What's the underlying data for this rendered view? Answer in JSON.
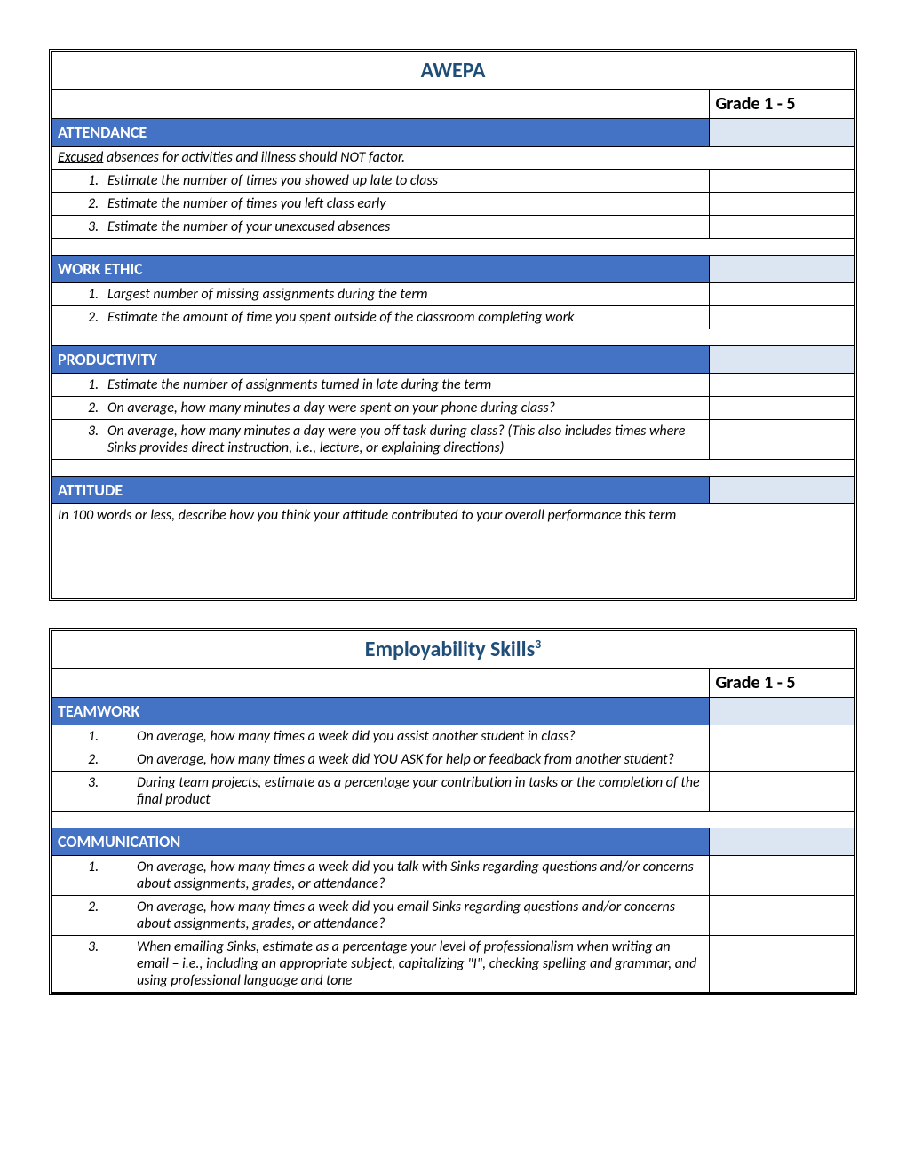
{
  "colors": {
    "heading_text": "#1f4e79",
    "section_bg": "#4472c4",
    "section_fg": "#ffffff",
    "section_right_bg": "#dce6f2",
    "border": "#000000",
    "page_bg": "#ffffff"
  },
  "layout": {
    "col_main_pct": 82,
    "col_grade_pct": 18,
    "font_family": "Calibri",
    "title_fontsize": 24,
    "section_fontsize": 18,
    "body_fontsize": 16
  },
  "tables": [
    {
      "title": "AWEPA",
      "grade_label": "Grade 1 - 5",
      "sections": [
        {
          "heading": "ATTENDANCE",
          "note": "Excused absences for activities and illness should NOT factor.",
          "note_underline_word": "Excused",
          "items": [
            "Estimate the number of times you showed up late to class",
            "Estimate the number of times you left class early",
            "Estimate the number of your unexcused absences"
          ],
          "item_style": "tight"
        },
        {
          "heading": "WORK ETHIC",
          "items": [
            "Largest number of missing assignments during the term",
            "Estimate the amount of time you spent outside of the classroom completing work"
          ],
          "item_style": "tight"
        },
        {
          "heading": "PRODUCTIVITY",
          "items": [
            "Estimate the number of assignments turned in late during the term",
            "On average, how many minutes a day were spent on your phone during class?",
            "On average, how many minutes a day were you off task during class? (This also includes times where Sinks provides direct instruction, i.e., lecture, or explaining directions)"
          ],
          "item_style": "tight"
        },
        {
          "heading": "ATTITUDE",
          "full_note": "In 100 words or less, describe how you think your attitude contributed to your overall performance this term",
          "tall": true
        }
      ]
    },
    {
      "title": "Employability Skills",
      "title_sup": "3",
      "grade_label": "Grade 1 - 5",
      "sections": [
        {
          "heading": "TEAMWORK",
          "items": [
            "On average, how many times a week did you assist another student in class?",
            "On average, how many times a week did YOU ASK for help or feedback from another student?",
            "During team projects, estimate as a percentage your contribution in tasks or the completion of the final product"
          ],
          "item_style": "wide"
        },
        {
          "heading": "COMMUNICATION",
          "items": [
            "On average, how many times a week did you talk with Sinks regarding questions and/or concerns about assignments, grades, or attendance?",
            "On average, how many times a week did you email Sinks regarding questions and/or concerns about assignments, grades, or attendance?",
            "When emailing Sinks, estimate as a percentage your level of professionalism when writing an email – i.e., including an appropriate subject, capitalizing \"I\", checking spelling and grammar, and using professional language and tone"
          ],
          "item_style": "wide"
        }
      ]
    }
  ]
}
